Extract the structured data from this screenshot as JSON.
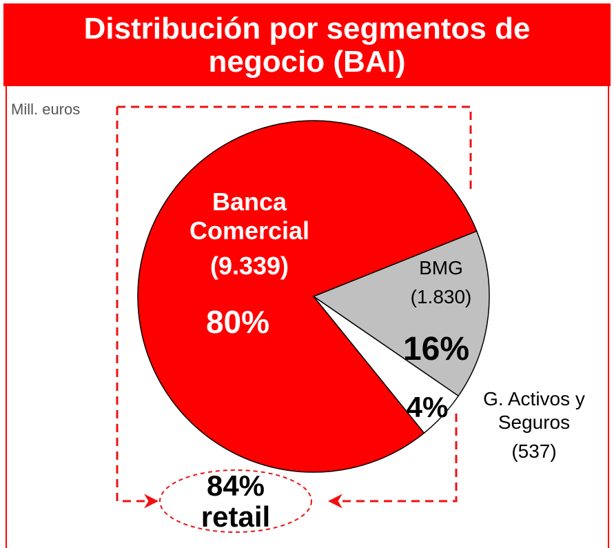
{
  "chart_data": {
    "type": "pie",
    "title": "Distribución por segmentos de negocio (BAI)",
    "unit_label": "Mill. euros",
    "categories": [
      "Banca Comercial",
      "BMG",
      "G. Activos y Seguros"
    ],
    "values": [
      9339,
      1830,
      537
    ],
    "value_labels": [
      "(9.339)",
      "(1.830)",
      "(537)"
    ],
    "percentages": [
      80,
      16,
      4
    ],
    "percentage_labels": [
      "80%",
      "16%",
      "4%"
    ],
    "colors": [
      "#ff0000",
      "#c0c0c0",
      "#ffffff"
    ],
    "annotation": "84% retail"
  }
}
